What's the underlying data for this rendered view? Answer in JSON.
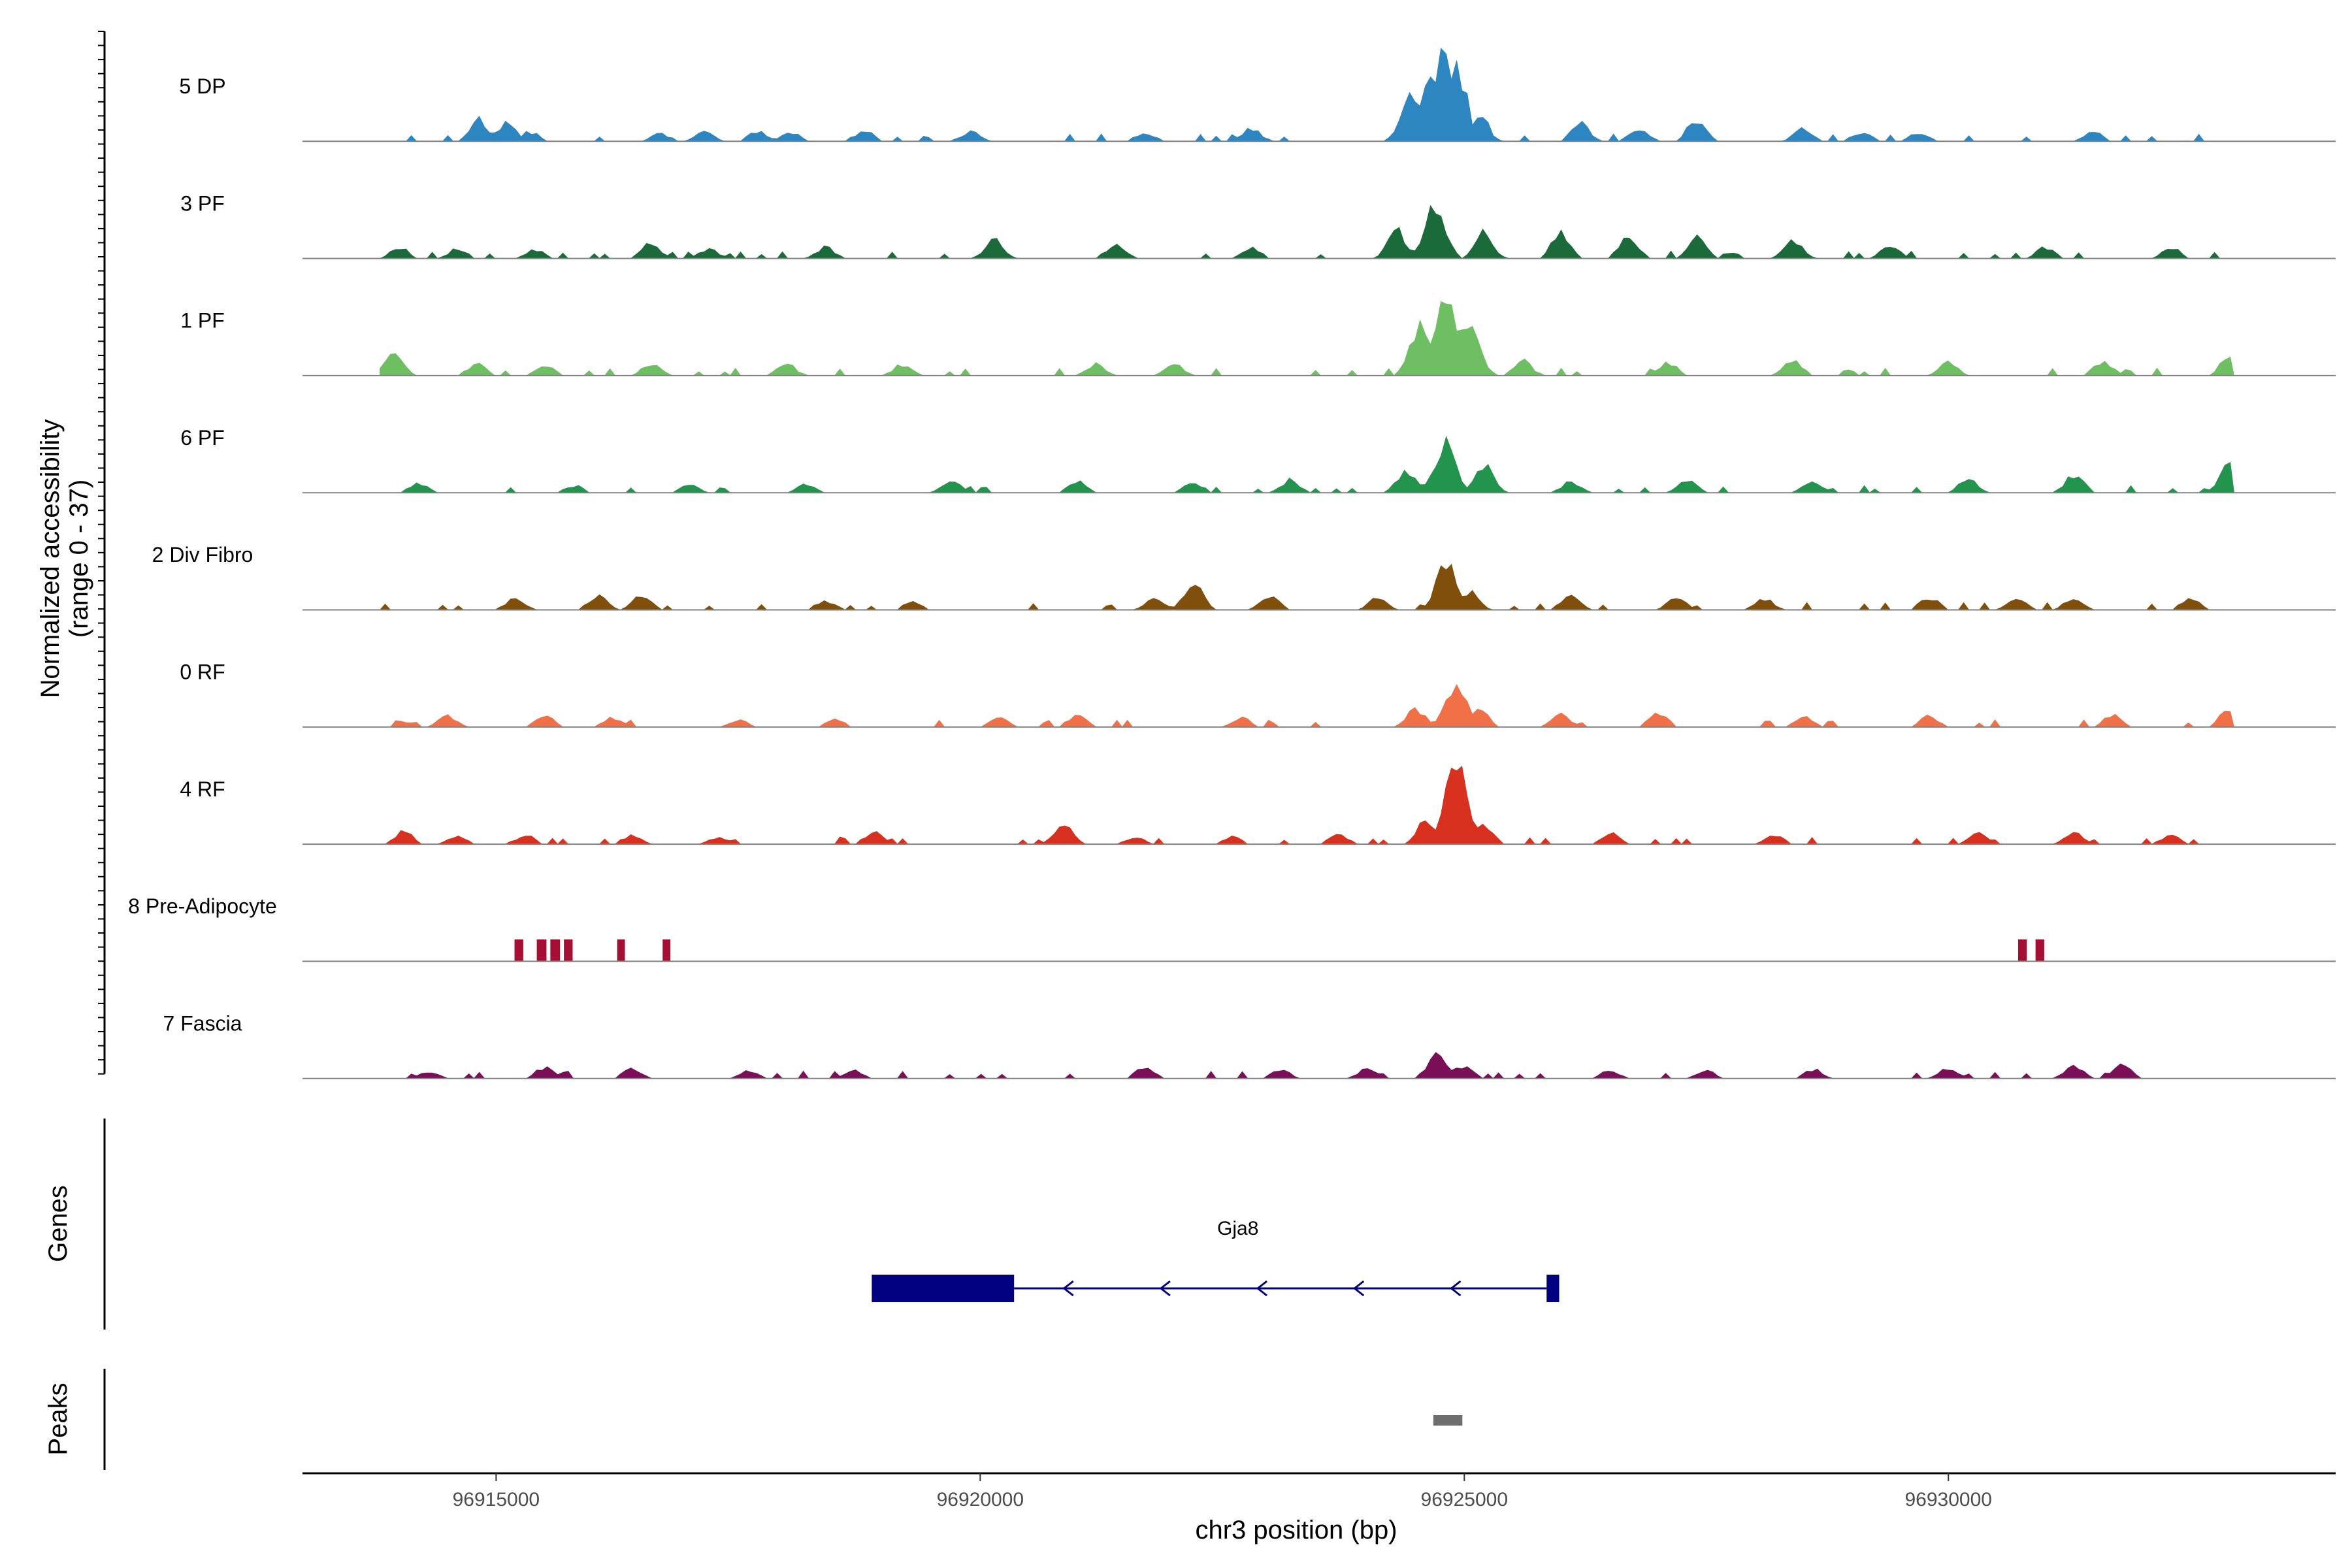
{
  "chart_data": {
    "type": "area",
    "title": "",
    "xlabel": "chr3 position (bp)",
    "ylabel": "Normalized accessibility\n(range 0 - 37)",
    "y_range": [
      0,
      37
    ],
    "x_range": [
      96913000,
      96934000
    ],
    "x_ticks": [
      96915000,
      96920000,
      96925000,
      96930000
    ],
    "tracks": [
      {
        "name": "5 DP",
        "color": "#2E86C1",
        "peaks": [
          [
            96914820,
            0.24
          ],
          [
            96915100,
            0.2
          ],
          [
            96915350,
            0.1
          ],
          [
            96916700,
            0.08
          ],
          [
            96917150,
            0.1
          ],
          [
            96917700,
            0.1
          ],
          [
            96918050,
            0.1
          ],
          [
            96918800,
            0.12
          ],
          [
            96919900,
            0.1
          ],
          [
            96921700,
            0.1
          ],
          [
            96922800,
            0.14
          ],
          [
            96924450,
            0.45
          ],
          [
            96924650,
            0.6
          ],
          [
            96924800,
            1.0
          ],
          [
            96924920,
            0.75
          ],
          [
            96925150,
            0.3
          ],
          [
            96926200,
            0.2
          ],
          [
            96926800,
            0.14
          ],
          [
            96927400,
            0.24
          ],
          [
            96928500,
            0.14
          ],
          [
            96929100,
            0.1
          ],
          [
            96929700,
            0.1
          ],
          [
            96931500,
            0.1
          ]
        ]
      },
      {
        "name": "3 PF",
        "color": "#1B6B3A",
        "peaks": [
          [
            96914000,
            0.12
          ],
          [
            96914600,
            0.1
          ],
          [
            96915400,
            0.1
          ],
          [
            96916600,
            0.16
          ],
          [
            96917200,
            0.1
          ],
          [
            96918400,
            0.12
          ],
          [
            96920150,
            0.2
          ],
          [
            96921400,
            0.16
          ],
          [
            96922800,
            0.12
          ],
          [
            96924300,
            0.3
          ],
          [
            96924700,
            0.55
          ],
          [
            96925200,
            0.3
          ],
          [
            96926000,
            0.28
          ],
          [
            96926700,
            0.25
          ],
          [
            96927400,
            0.22
          ],
          [
            96928400,
            0.18
          ],
          [
            96929400,
            0.14
          ],
          [
            96931000,
            0.12
          ],
          [
            96932300,
            0.12
          ]
        ]
      },
      {
        "name": "1 PF",
        "color": "#6DBF62",
        "peaks": [
          [
            96913950,
            0.25
          ],
          [
            96914800,
            0.12
          ],
          [
            96915500,
            0.12
          ],
          [
            96916600,
            0.12
          ],
          [
            96918000,
            0.12
          ],
          [
            96919200,
            0.12
          ],
          [
            96921200,
            0.12
          ],
          [
            96922000,
            0.12
          ],
          [
            96924550,
            0.6
          ],
          [
            96924820,
            1.0
          ],
          [
            96925050,
            0.55
          ],
          [
            96925600,
            0.16
          ],
          [
            96927100,
            0.14
          ],
          [
            96928400,
            0.16
          ],
          [
            96930000,
            0.14
          ],
          [
            96931600,
            0.16
          ],
          [
            96932900,
            0.2
          ]
        ]
      },
      {
        "name": "6 PF",
        "color": "#23944E",
        "peaks": [
          [
            96914200,
            0.1
          ],
          [
            96915800,
            0.08
          ],
          [
            96917000,
            0.08
          ],
          [
            96918200,
            0.1
          ],
          [
            96919700,
            0.14
          ],
          [
            96921000,
            0.12
          ],
          [
            96922200,
            0.12
          ],
          [
            96923200,
            0.14
          ],
          [
            96924400,
            0.25
          ],
          [
            96924800,
            0.55
          ],
          [
            96925200,
            0.3
          ],
          [
            96926100,
            0.12
          ],
          [
            96927300,
            0.14
          ],
          [
            96928600,
            0.12
          ],
          [
            96930200,
            0.14
          ],
          [
            96931300,
            0.2
          ],
          [
            96932900,
            0.35
          ]
        ]
      },
      {
        "name": "2 Div Fibro",
        "color": "#7F4F0B",
        "peaks": [
          [
            96915200,
            0.12
          ],
          [
            96916050,
            0.16
          ],
          [
            96916500,
            0.16
          ],
          [
            96918400,
            0.1
          ],
          [
            96919300,
            0.08
          ],
          [
            96921800,
            0.12
          ],
          [
            96922200,
            0.3
          ],
          [
            96923000,
            0.16
          ],
          [
            96924100,
            0.12
          ],
          [
            96924820,
            0.5
          ],
          [
            96925050,
            0.2
          ],
          [
            96926100,
            0.18
          ],
          [
            96927200,
            0.14
          ],
          [
            96928100,
            0.12
          ],
          [
            96929800,
            0.14
          ],
          [
            96930700,
            0.12
          ],
          [
            96931300,
            0.14
          ],
          [
            96932500,
            0.12
          ]
        ]
      },
      {
        "name": "0 RF",
        "color": "#F07048",
        "peaks": [
          [
            96914500,
            0.12
          ],
          [
            96915500,
            0.14
          ],
          [
            96916200,
            0.1
          ],
          [
            96917500,
            0.08
          ],
          [
            96918500,
            0.08
          ],
          [
            96920200,
            0.1
          ],
          [
            96921000,
            0.12
          ],
          [
            96922700,
            0.1
          ],
          [
            96924500,
            0.2
          ],
          [
            96924920,
            0.45
          ],
          [
            96925150,
            0.2
          ],
          [
            96926000,
            0.14
          ],
          [
            96927000,
            0.16
          ],
          [
            96928500,
            0.12
          ],
          [
            96929800,
            0.12
          ],
          [
            96931700,
            0.14
          ],
          [
            96932900,
            0.22
          ]
        ]
      },
      {
        "name": "4 RF",
        "color": "#D7301F",
        "peaks": [
          [
            96914050,
            0.14
          ],
          [
            96914600,
            0.08
          ],
          [
            96915300,
            0.1
          ],
          [
            96916400,
            0.1
          ],
          [
            96917300,
            0.08
          ],
          [
            96918900,
            0.14
          ],
          [
            96920850,
            0.22
          ],
          [
            96921600,
            0.08
          ],
          [
            96922600,
            0.08
          ],
          [
            96923700,
            0.1
          ],
          [
            96924600,
            0.25
          ],
          [
            96924900,
            1.0
          ],
          [
            96925200,
            0.2
          ],
          [
            96926500,
            0.12
          ],
          [
            96928200,
            0.1
          ],
          [
            96930300,
            0.12
          ],
          [
            96931300,
            0.12
          ],
          [
            96932300,
            0.1
          ]
        ]
      },
      {
        "name": "8 Pre-Adipocyte",
        "color": "#A50F33",
        "blocks": [
          [
            96915190,
            96915280
          ],
          [
            96915420,
            96915520
          ],
          [
            96915560,
            96915660
          ],
          [
            96915700,
            96915790
          ],
          [
            96916250,
            96916330
          ],
          [
            96916720,
            96916800
          ],
          [
            96930720,
            96930810
          ],
          [
            96930900,
            96930990
          ]
        ],
        "block_height": 0.24
      },
      {
        "name": "7 Fascia",
        "color": "#7A0F57",
        "peaks": [
          [
            96914300,
            0.08
          ],
          [
            96915500,
            0.12
          ],
          [
            96916400,
            0.1
          ],
          [
            96917600,
            0.08
          ],
          [
            96918700,
            0.08
          ],
          [
            96921700,
            0.12
          ],
          [
            96923100,
            0.1
          ],
          [
            96924000,
            0.1
          ],
          [
            96924720,
            0.3
          ],
          [
            96925000,
            0.14
          ],
          [
            96926500,
            0.08
          ],
          [
            96927500,
            0.08
          ],
          [
            96928600,
            0.1
          ],
          [
            96930000,
            0.12
          ],
          [
            96931300,
            0.14
          ],
          [
            96931800,
            0.14
          ]
        ]
      }
    ],
    "genes_track_label": "Genes",
    "gene": {
      "name": "Gja8",
      "color": "#000080",
      "strand": "-",
      "thick_blocks": [
        [
          96918880,
          96920350
        ],
        [
          96925850,
          96925980
        ]
      ],
      "line": [
        96920350,
        96925850
      ],
      "arrows": [
        96920900,
        96921900,
        96922900,
        96923900,
        96924900
      ]
    },
    "peaks_track_label": "Peaks",
    "peak_regions": [
      [
        96924680,
        96924980
      ]
    ],
    "peak_color": "#6E6E6E"
  }
}
